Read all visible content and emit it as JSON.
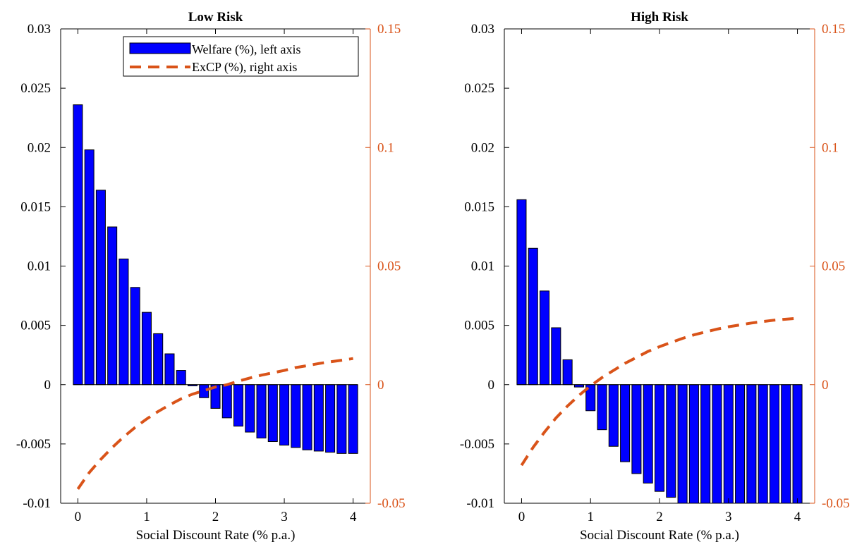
{
  "chart_data": [
    {
      "type": "bar",
      "title": "Low Risk",
      "xlabel": "Social Discount Rate (% p.a.)",
      "ylabel": "",
      "x": [
        0,
        0.1667,
        0.3333,
        0.5,
        0.6667,
        0.8333,
        1.0,
        1.1667,
        1.3333,
        1.5,
        1.6667,
        1.8333,
        2.0,
        2.1667,
        2.3333,
        2.5,
        2.6667,
        2.8333,
        3.0,
        3.1667,
        3.3333,
        3.5,
        3.6667,
        3.8333,
        4.0
      ],
      "xlim": [
        -0.25,
        4.25
      ],
      "xticks": [
        "0",
        "1",
        "2",
        "3",
        "4"
      ],
      "ylim": [
        -0.01,
        0.03
      ],
      "yticks": [
        "-0.01",
        "-0.005",
        "0",
        "0.005",
        "0.01",
        "0.015",
        "0.02",
        "0.025",
        "0.03"
      ],
      "y2lim": [
        -0.05,
        0.15
      ],
      "y2ticks": [
        "-0.05",
        "0",
        "0.05",
        "0.1",
        "0.15"
      ],
      "grid": false,
      "legend_position": "top-right",
      "series": [
        {
          "name": "Welfare (%), left axis",
          "kind": "bar",
          "axis": "left",
          "color": "#0000FF",
          "values": [
            0.0236,
            0.0198,
            0.0164,
            0.0133,
            0.0106,
            0.0082,
            0.0061,
            0.0043,
            0.0026,
            0.0012,
            -0.0001,
            -0.0011,
            -0.002,
            -0.0028,
            -0.0035,
            -0.004,
            -0.0045,
            -0.0048,
            -0.0051,
            -0.0053,
            -0.0055,
            -0.0056,
            -0.0057,
            -0.0058,
            -0.0058
          ]
        },
        {
          "name": "ExCP (%), right axis",
          "kind": "line",
          "axis": "right",
          "color": "#D95319",
          "line_style": "dashed",
          "values": [
            -0.044,
            -0.037,
            -0.0315,
            -0.0265,
            -0.022,
            -0.018,
            -0.0145,
            -0.0113,
            -0.0085,
            -0.006,
            -0.004,
            -0.0025,
            -0.001,
            0.0,
            0.0015,
            0.0028,
            0.004,
            0.005,
            0.006,
            0.0072,
            0.008,
            0.0089,
            0.0096,
            0.0103,
            0.011
          ]
        }
      ]
    },
    {
      "type": "bar",
      "title": "High Risk",
      "xlabel": "Social Discount Rate (% p.a.)",
      "ylabel": "",
      "x": [
        0,
        0.1667,
        0.3333,
        0.5,
        0.6667,
        0.8333,
        1.0,
        1.1667,
        1.3333,
        1.5,
        1.6667,
        1.8333,
        2.0,
        2.1667,
        2.3333,
        2.5,
        2.6667,
        2.8333,
        3.0,
        3.1667,
        3.3333,
        3.5,
        3.6667,
        3.8333,
        4.0
      ],
      "xlim": [
        -0.25,
        4.25
      ],
      "xticks": [
        "0",
        "1",
        "2",
        "3",
        "4"
      ],
      "ylim": [
        -0.01,
        0.03
      ],
      "yticks": [
        "-0.01",
        "-0.005",
        "0",
        "0.005",
        "0.01",
        "0.015",
        "0.02",
        "0.025",
        "0.03"
      ],
      "y2lim": [
        -0.05,
        0.15
      ],
      "y2ticks": [
        "-0.05",
        "0",
        "0.05",
        "0.1",
        "0.15"
      ],
      "grid": false,
      "legend_position": "none",
      "series": [
        {
          "name": "Welfare (%), left axis",
          "kind": "bar",
          "axis": "left",
          "color": "#0000FF",
          "values": [
            0.0156,
            0.0115,
            0.0079,
            0.0048,
            0.0021,
            -0.0002,
            -0.0022,
            -0.0038,
            -0.0052,
            -0.0065,
            -0.0075,
            -0.0083,
            -0.009,
            -0.0095,
            -0.01,
            -0.0104,
            -0.0107,
            -0.011,
            -0.0112,
            -0.0114,
            -0.0115,
            -0.0116,
            -0.0117,
            -0.0118,
            -0.0118
          ]
        },
        {
          "name": "ExCP (%), right axis",
          "kind": "line",
          "axis": "right",
          "color": "#D95319",
          "line_style": "dashed",
          "values": [
            -0.034,
            -0.0265,
            -0.02,
            -0.014,
            -0.009,
            -0.0045,
            -0.0005,
            0.003,
            0.006,
            0.009,
            0.0115,
            0.014,
            0.016,
            0.0178,
            0.0195,
            0.021,
            0.0222,
            0.0234,
            0.0244,
            0.0252,
            0.026,
            0.0266,
            0.0272,
            0.0276,
            0.028
          ]
        }
      ]
    }
  ]
}
